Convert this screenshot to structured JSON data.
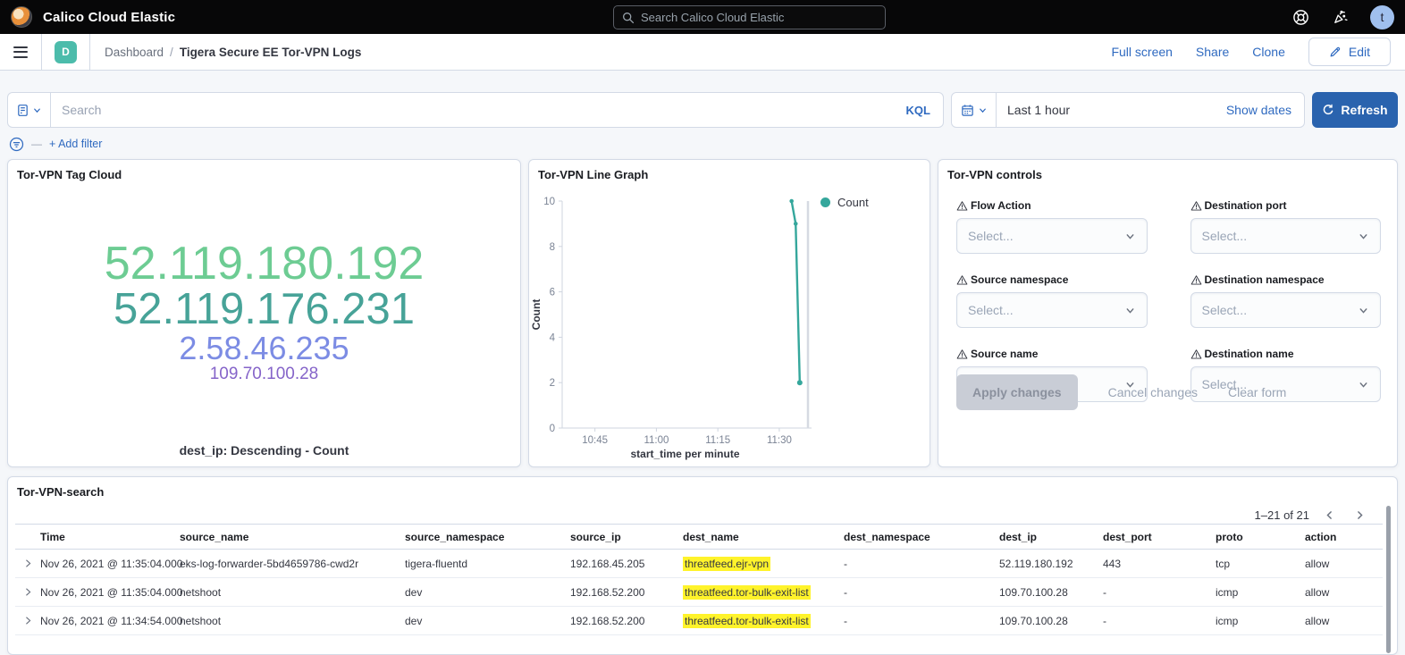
{
  "topbar": {
    "brand": "Calico Cloud Elastic",
    "search_placeholder": "Search Calico Cloud Elastic",
    "avatar_initial": "t"
  },
  "navbar": {
    "space_badge": "D",
    "breadcrumb": {
      "section": "Dashboard",
      "separator": "/",
      "page": "Tigera Secure EE Tor-VPN Logs"
    },
    "actions": {
      "full_screen": "Full screen",
      "share": "Share",
      "clone": "Clone",
      "edit": "Edit"
    }
  },
  "querybar": {
    "search_placeholder": "Search",
    "kql_label": "KQL",
    "time_range": "Last 1 hour",
    "show_dates": "Show dates",
    "refresh_label": "Refresh",
    "add_filter": "+ Add filter"
  },
  "panels": {
    "tag_cloud": {
      "title": "Tor-VPN Tag Cloud",
      "caption": "dest_ip: Descending - Count",
      "tags": [
        {
          "label": "52.119.180.192",
          "color": "#6dcc93",
          "size": 52
        },
        {
          "label": "52.119.176.231",
          "color": "#47a398",
          "size": 49
        },
        {
          "label": "2.58.46.235",
          "color": "#7c8ce4",
          "size": 36
        },
        {
          "label": "109.70.100.28",
          "color": "#8564c9",
          "size": 19
        }
      ]
    },
    "line_graph": {
      "title": "Tor-VPN Line Graph"
    },
    "controls": {
      "title": "Tor-VPN controls",
      "fields": [
        {
          "label": "Flow Action",
          "placeholder": "Select..."
        },
        {
          "label": "Destination port",
          "placeholder": "Select..."
        },
        {
          "label": "Source namespace",
          "placeholder": "Select..."
        },
        {
          "label": "Destination namespace",
          "placeholder": "Select..."
        },
        {
          "label": "Source name",
          "placeholder": "Select..."
        },
        {
          "label": "Destination name",
          "placeholder": "Select..."
        }
      ],
      "buttons": {
        "apply": "Apply changes",
        "cancel": "Cancel changes",
        "clear": "Clear form"
      }
    },
    "search_table": {
      "title": "Tor-VPN-search",
      "pagination": "1–21 of 21",
      "columns": [
        "Time",
        "source_name",
        "source_namespace",
        "source_ip",
        "dest_name",
        "dest_namespace",
        "dest_ip",
        "dest_port",
        "proto",
        "action"
      ],
      "highlight_column": "dest_name",
      "rows": [
        [
          "Nov 26, 2021 @ 11:35:04.000",
          "eks-log-forwarder-5bd4659786-cwd2r",
          "tigera-fluentd",
          "192.168.45.205",
          "threatfeed.ejr-vpn",
          "-",
          "52.119.180.192",
          "443",
          "tcp",
          "allow"
        ],
        [
          "Nov 26, 2021 @ 11:35:04.000",
          "netshoot",
          "dev",
          "192.168.52.200",
          "threatfeed.tor-bulk-exit-list",
          "-",
          "109.70.100.28",
          "-",
          "icmp",
          "allow"
        ],
        [
          "Nov 26, 2021 @ 11:34:54.000",
          "netshoot",
          "dev",
          "192.168.52.200",
          "threatfeed.tor-bulk-exit-list",
          "-",
          "109.70.100.28",
          "-",
          "icmp",
          "allow"
        ]
      ]
    }
  },
  "chart_data": {
    "type": "line",
    "title": "Tor-VPN Line Graph",
    "xlabel": "start_time per minute",
    "ylabel": "Count",
    "ylim": [
      0,
      10
    ],
    "yticks": [
      0,
      2,
      4,
      6,
      8,
      10
    ],
    "xticks": [
      "10:45",
      "11:00",
      "11:15",
      "11:30"
    ],
    "x_domain": [
      "10:37",
      "11:37"
    ],
    "now_marker": "11:37",
    "grid": false,
    "legend": {
      "position": "top-right"
    },
    "series": [
      {
        "name": "Count",
        "color": "#35a79c",
        "points": [
          [
            "11:33",
            10
          ],
          [
            "11:34",
            9
          ],
          [
            "11:35",
            2
          ]
        ]
      }
    ]
  },
  "colors": {
    "accent_blue": "#2f6ac0",
    "refresh_button": "#2a63ae",
    "space_badge": "#4cbcab",
    "highlight_yellow": "#fff32b",
    "line_series": "#35a79c"
  }
}
